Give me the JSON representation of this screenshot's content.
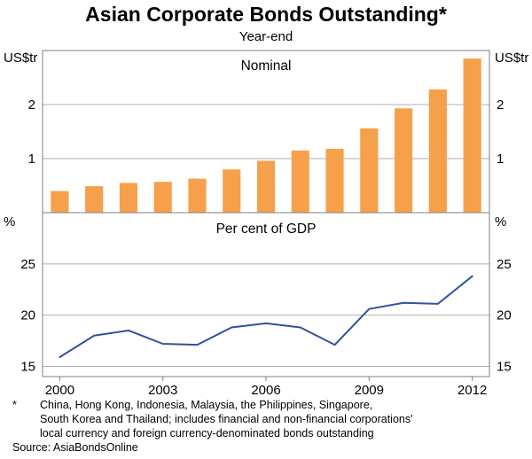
{
  "header": {
    "title": "Asian Corporate Bonds Outstanding*",
    "subtitle": "Year-end"
  },
  "footnote": {
    "marker": "*",
    "lines": [
      "China, Hong Kong, Indonesia, Malaysia, the Philippines, Singapore,",
      "South Korea and Thailand; includes financial and non-financial corporations'",
      "local currency and foreign currency-denominated bonds outstanding"
    ],
    "source": "Source: AsiaBondsOnline"
  },
  "colors": {
    "bar": "#F7A04B",
    "line": "#32519E",
    "grid": "#AFAFAF",
    "frame": "#7F7F7F",
    "text": "#000000"
  },
  "chart_data": [
    {
      "type": "bar",
      "panel": "top",
      "title": "Nominal",
      "unit_left": "US$tr",
      "unit_right": "US$tr",
      "categories": [
        2000,
        2001,
        2002,
        2003,
        2004,
        2005,
        2006,
        2007,
        2008,
        2009,
        2010,
        2011,
        2012
      ],
      "values": [
        0.4,
        0.49,
        0.55,
        0.57,
        0.63,
        0.8,
        0.96,
        1.15,
        1.18,
        1.56,
        1.93,
        2.28,
        2.85
      ],
      "ylim": [
        0,
        3
      ],
      "yticks": [
        1,
        2
      ],
      "grid": true,
      "legend": "none"
    },
    {
      "type": "line",
      "panel": "bottom",
      "title": "Per cent of GDP",
      "unit_left": "%",
      "unit_right": "%",
      "categories": [
        2000,
        2001,
        2002,
        2003,
        2004,
        2005,
        2006,
        2007,
        2008,
        2009,
        2010,
        2011,
        2012
      ],
      "values": [
        15.9,
        18.0,
        18.5,
        17.2,
        17.1,
        18.8,
        19.2,
        18.8,
        17.1,
        20.6,
        21.2,
        21.1,
        23.8
      ],
      "ylim": [
        14,
        30
      ],
      "yticks": [
        15,
        20,
        25
      ],
      "xticks": [
        2000,
        2003,
        2006,
        2009,
        2012
      ],
      "grid": true,
      "legend": "none"
    }
  ]
}
